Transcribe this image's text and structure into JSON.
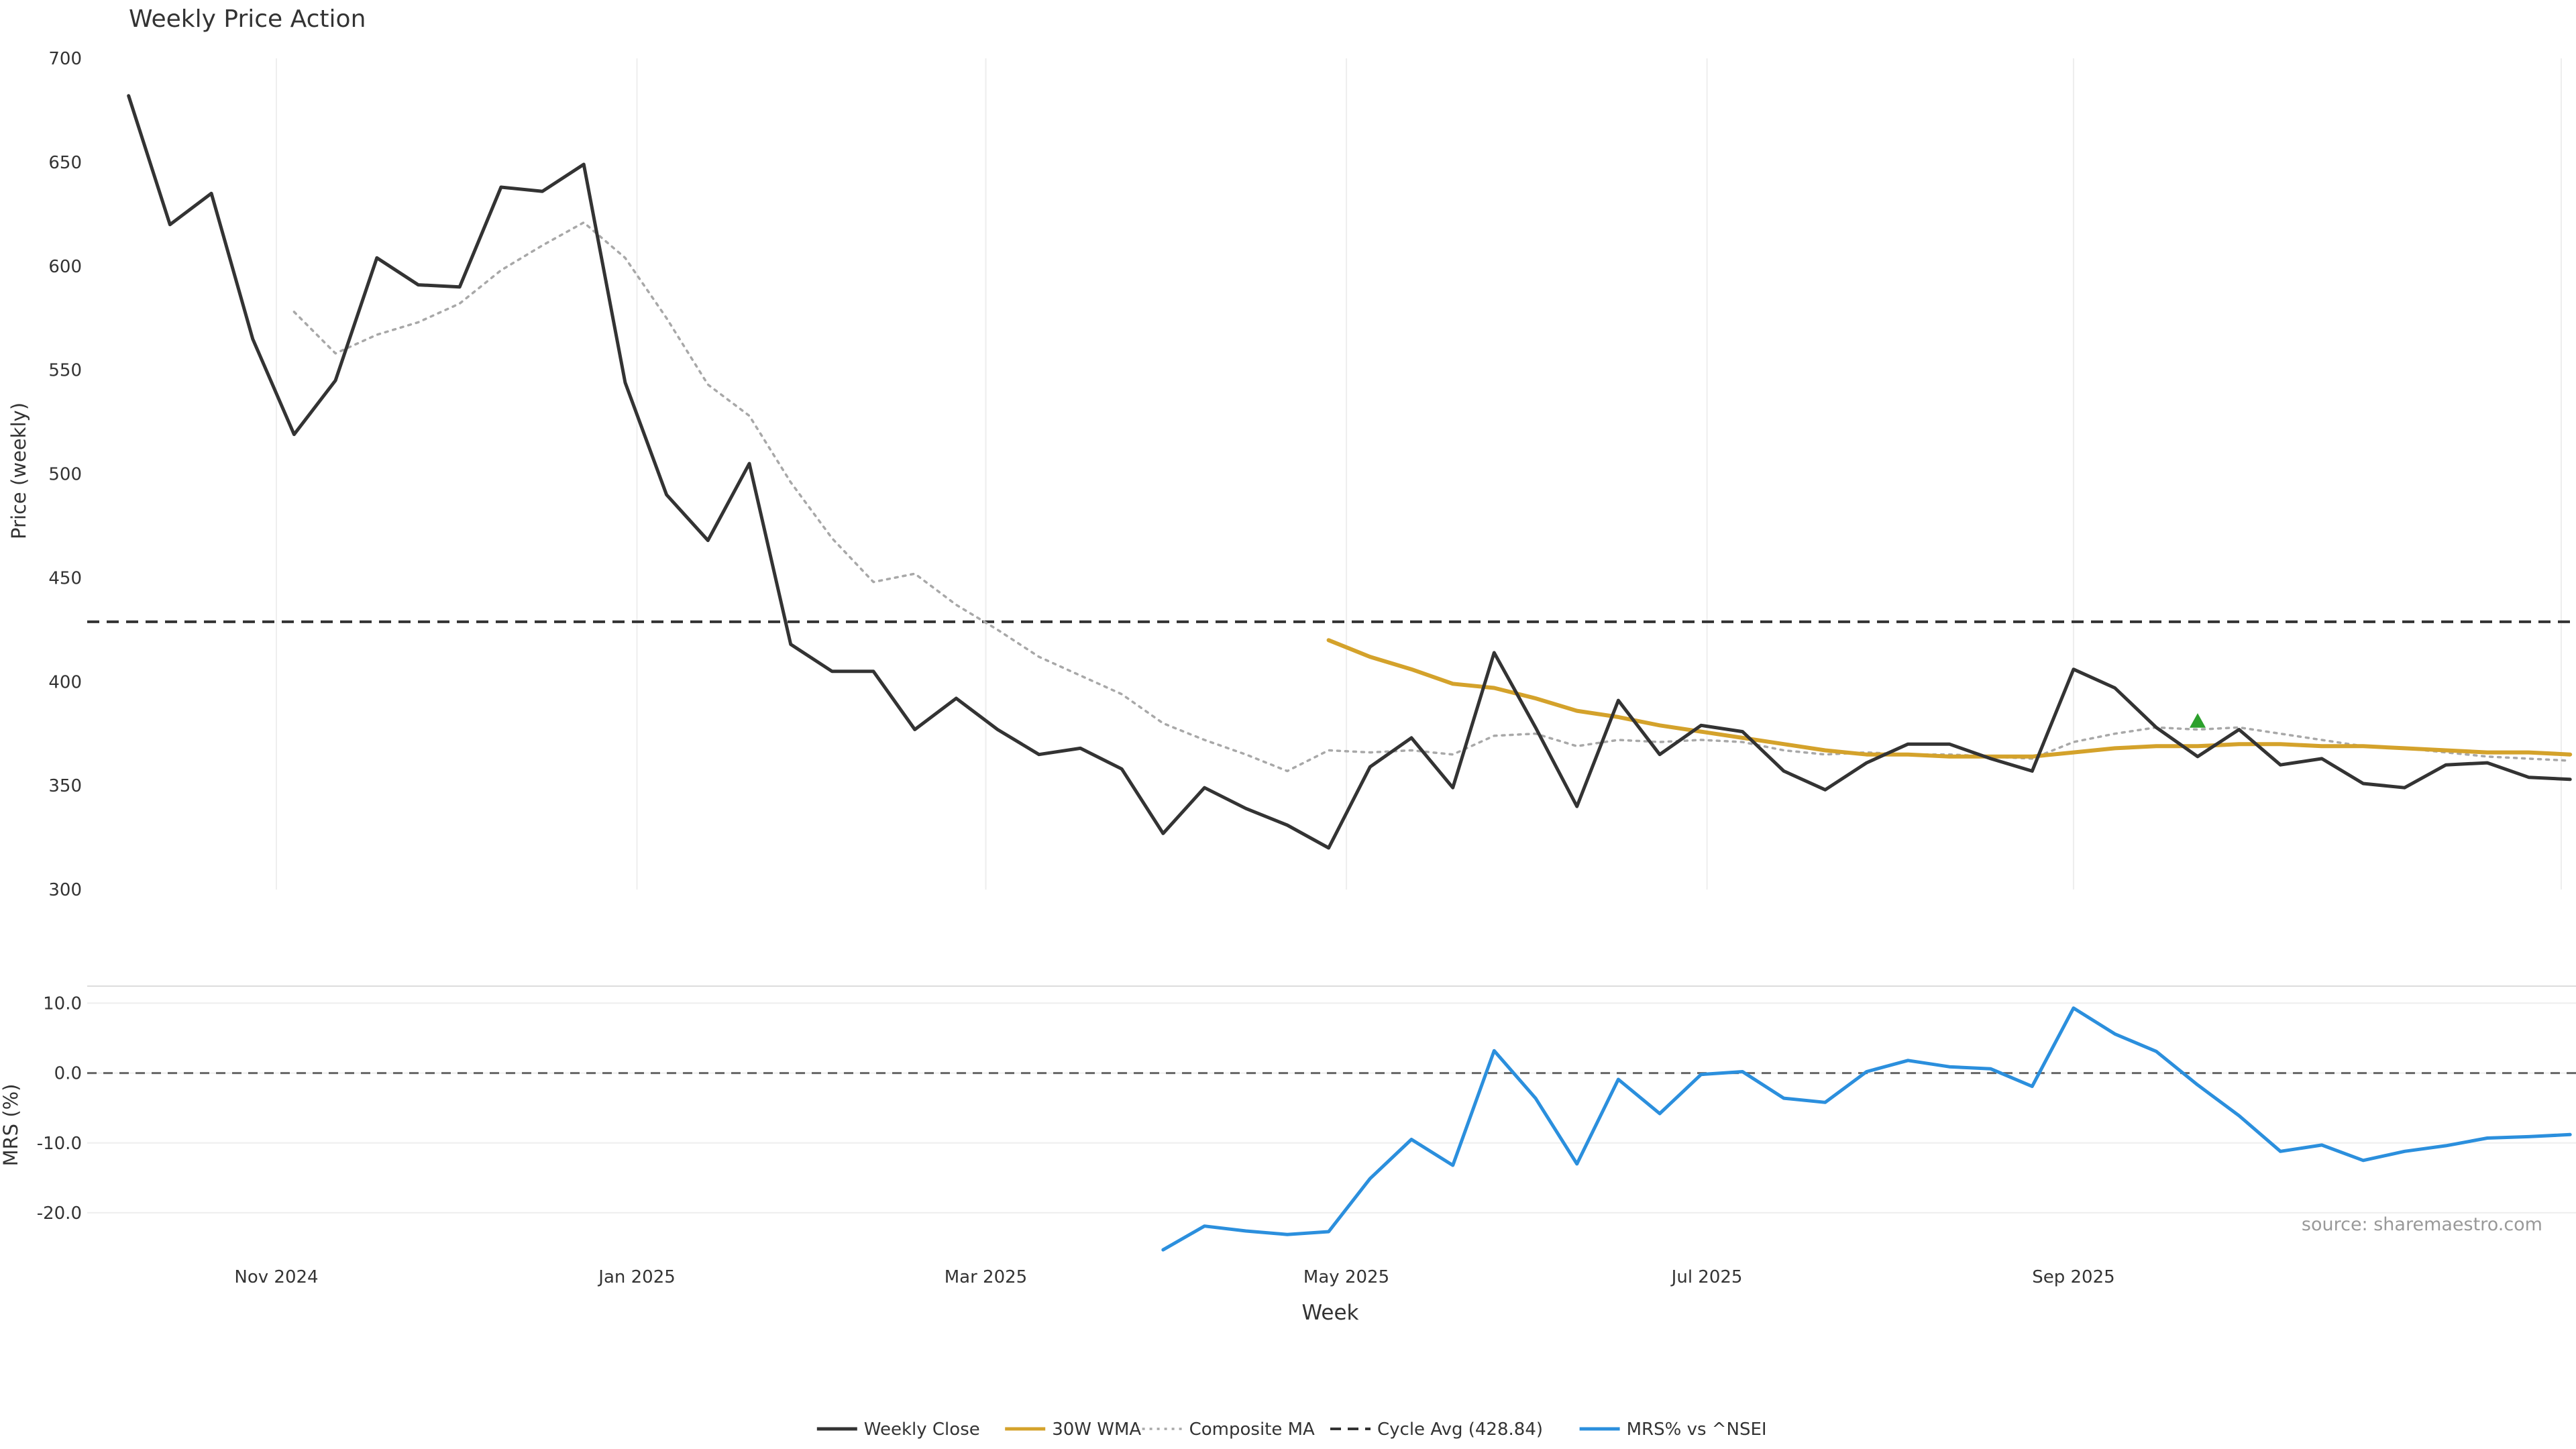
{
  "title": "Weekly Price Action",
  "source": "source: sharemaestro.com",
  "chart_data": [
    {
      "type": "line",
      "title": "Weekly Price Action",
      "ylabel": "Price (weekly)",
      "ylim": [
        300,
        700
      ],
      "yticks": [
        300,
        350,
        400,
        450,
        500,
        550,
        600,
        650,
        700
      ],
      "grid": true,
      "x_range": [
        "2024-09-30",
        "2025-11-25"
      ],
      "x_ticks": [
        {
          "date": "2024-11-01",
          "label": "Nov 2024"
        },
        {
          "date": "2025-01-01",
          "label": "Jan 2025"
        },
        {
          "date": "2025-03-01",
          "label": "Mar 2025"
        },
        {
          "date": "2025-05-01",
          "label": "May 2025"
        },
        {
          "date": "2025-07-01",
          "label": "Jul 2025"
        },
        {
          "date": "2025-09-01",
          "label": "Sep 2025"
        }
      ],
      "x": [
        "2024-10-07",
        "2024-10-14",
        "2024-10-21",
        "2024-10-28",
        "2024-11-04",
        "2024-11-11",
        "2024-11-18",
        "2024-11-25",
        "2024-12-02",
        "2024-12-09",
        "2024-12-16",
        "2024-12-23",
        "2024-12-30",
        "2025-01-06",
        "2025-01-13",
        "2025-01-20",
        "2025-01-27",
        "2025-02-03",
        "2025-02-10",
        "2025-02-17",
        "2025-02-24",
        "2025-03-03",
        "2025-03-10",
        "2025-03-17",
        "2025-03-24",
        "2025-03-31",
        "2025-04-07",
        "2025-04-14",
        "2025-04-21",
        "2025-04-28",
        "2025-05-05",
        "2025-05-12",
        "2025-05-19",
        "2025-05-26",
        "2025-06-02",
        "2025-06-09",
        "2025-06-16",
        "2025-06-23",
        "2025-06-30",
        "2025-07-07",
        "2025-07-14",
        "2025-07-21",
        "2025-07-28",
        "2025-08-04",
        "2025-08-11",
        "2025-08-18",
        "2025-08-25",
        "2025-09-01",
        "2025-09-08",
        "2025-09-15",
        "2025-09-22",
        "2025-09-29",
        "2025-10-06",
        "2025-10-13",
        "2025-10-20",
        "2025-10-27",
        "2025-11-03",
        "2025-11-10",
        "2025-11-17",
        "2025-11-24"
      ],
      "series": [
        {
          "name": "Weekly Close",
          "color": "#333333",
          "style": "solid",
          "values": [
            682,
            620,
            635,
            565,
            519,
            545,
            604,
            591,
            590,
            638,
            636,
            649,
            544,
            490,
            468,
            505,
            418,
            405,
            405,
            377,
            392,
            377,
            365,
            368,
            358,
            327,
            349,
            339,
            331,
            320,
            359,
            373,
            349,
            414,
            378,
            340,
            391,
            365,
            379,
            376,
            357,
            348,
            361,
            370,
            370,
            363,
            357,
            406,
            397,
            378,
            364,
            377,
            360,
            363,
            351,
            349,
            360,
            361,
            354,
            353
          ]
        },
        {
          "name": "30W WMA",
          "color": "#d4a22b",
          "style": "solid",
          "values": [
            null,
            null,
            null,
            null,
            null,
            null,
            null,
            null,
            null,
            null,
            null,
            null,
            null,
            null,
            null,
            null,
            null,
            null,
            null,
            null,
            null,
            null,
            null,
            null,
            null,
            null,
            null,
            null,
            null,
            420,
            412,
            406,
            399,
            397,
            392,
            386,
            383,
            379,
            376,
            373,
            370,
            367,
            365,
            365,
            364,
            364,
            364,
            366,
            368,
            369,
            369,
            370,
            370,
            369,
            369,
            368,
            367,
            366,
            366,
            365
          ]
        },
        {
          "name": "Composite MA",
          "color": "#a8a8a8",
          "style": "dotted",
          "values": [
            null,
            null,
            null,
            null,
            578,
            558,
            567,
            573,
            582,
            598,
            610,
            621,
            604,
            575,
            543,
            528,
            496,
            469,
            448,
            452,
            437,
            425,
            412,
            403,
            394,
            380,
            372,
            365,
            357,
            367,
            366,
            367,
            365,
            374,
            375,
            369,
            372,
            371,
            372,
            371,
            367,
            365,
            366,
            365,
            365,
            364,
            363,
            371,
            375,
            378,
            377,
            378,
            375,
            372,
            369,
            368,
            366,
            364,
            363,
            362
          ]
        }
      ],
      "reference_lines": [
        {
          "name": "Cycle Avg (428.84)",
          "value": 428.84,
          "style": "dashed",
          "color": "#333333"
        }
      ],
      "markers": [
        {
          "date": "2025-09-22",
          "value": 381,
          "shape": "triangle-up",
          "color": "#2ca02c"
        }
      ]
    },
    {
      "type": "line",
      "ylabel": "MRS (%)",
      "ylim": [
        -25,
        11
      ],
      "yticks": [
        {
          "value": 10,
          "label": "10.0"
        },
        {
          "value": 0,
          "label": "0.0"
        },
        {
          "value": -10,
          "label": "-10.0"
        },
        {
          "value": -20,
          "label": "-20.0"
        }
      ],
      "xlabel": "Week",
      "series": [
        {
          "name": "MRS% vs ^NSEI",
          "color": "#2b8fdd",
          "style": "solid",
          "values": [
            null,
            null,
            null,
            null,
            null,
            null,
            null,
            null,
            null,
            null,
            null,
            null,
            null,
            null,
            null,
            null,
            null,
            null,
            null,
            null,
            null,
            null,
            null,
            null,
            null,
            -25.3,
            -21.9,
            -22.6,
            -23.1,
            -22.7,
            -15.1,
            -9.5,
            -13.2,
            3.2,
            -3.6,
            -13.0,
            -0.9,
            -5.8,
            -0.2,
            0.2,
            -3.6,
            -4.2,
            0.2,
            1.8,
            0.9,
            0.6,
            -1.9,
            9.3,
            5.6,
            3.1,
            -1.7,
            -6.1,
            -11.2,
            -10.3,
            -12.5,
            -11.2,
            -10.4,
            -9.3,
            -9.1,
            -8.8
          ]
        }
      ],
      "reference_lines": [
        {
          "name": "zero",
          "value": 0,
          "style": "dashed",
          "color": "#666666"
        }
      ]
    }
  ],
  "legend": {
    "placement": "bottom-center",
    "items": [
      {
        "label": "Weekly Close",
        "color": "#333333",
        "style": "solid"
      },
      {
        "label": "30W WMA",
        "color": "#d4a22b",
        "style": "solid"
      },
      {
        "label": "Composite MA",
        "color": "#a8a8a8",
        "style": "dotted"
      },
      {
        "label": "Cycle Avg (428.84)",
        "color": "#333333",
        "style": "dashed"
      },
      {
        "label": "MRS% vs ^NSEI",
        "color": "#2b8fdd",
        "style": "solid"
      }
    ]
  }
}
